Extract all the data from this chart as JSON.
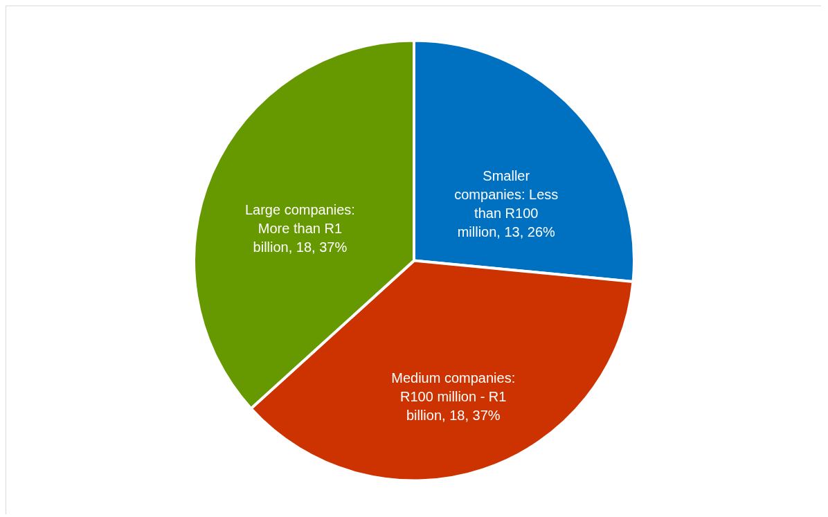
{
  "chart_data": {
    "type": "pie",
    "categories": [
      "Smaller companies: Less than R100 million",
      "Medium companies: R100 million - R1 billion",
      "Large companies: More than R1 billion"
    ],
    "values": [
      13,
      18,
      18
    ],
    "colors": [
      "#0070c0",
      "#cc3300",
      "#669900"
    ],
    "value_labels": [
      "13, 26%",
      "18, 37%",
      "18, 37%"
    ]
  }
}
